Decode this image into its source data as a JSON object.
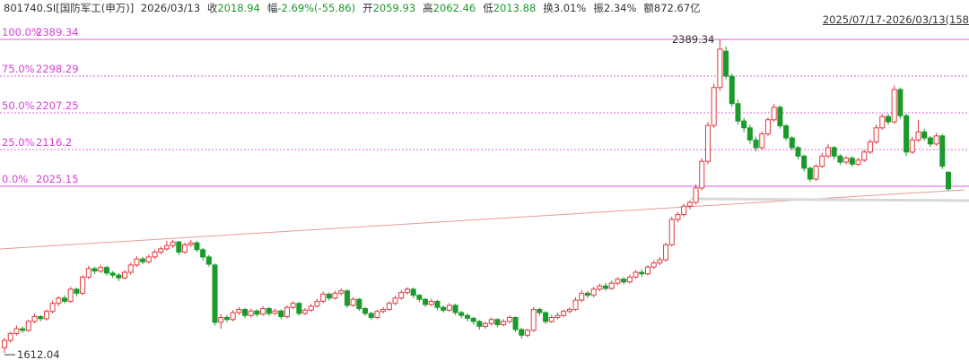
{
  "header": {
    "code": "801740.SI[国防军工(申万)]",
    "date": "2026/03/13",
    "items": [
      {
        "label": "收",
        "value": "2018.94",
        "color": "#1a9a2a"
      },
      {
        "label": "幅",
        "value": "-2.69%(-55.86)",
        "color": "#1a9a2a"
      },
      {
        "label": "开",
        "value": "2059.93",
        "color": "#1a9a2a"
      },
      {
        "label": "高",
        "value": "2062.46",
        "color": "#1a9a2a"
      },
      {
        "label": "低",
        "value": "2013.88",
        "color": "#1a9a2a"
      },
      {
        "label": "换",
        "value": "3.01%",
        "color": "#333333"
      },
      {
        "label": "振",
        "value": "2.34%",
        "color": "#333333"
      },
      {
        "label": "额",
        "value": "872.67亿",
        "color": "#333333"
      }
    ],
    "range": "2025/07/17-2026/03/13(158"
  },
  "chart_data": {
    "type": "candlestick",
    "ylim": [
      1594.5,
      2487
    ],
    "up_color": "#e0393e",
    "down_color": "#1a9a2a",
    "level_color": "#d63fd6",
    "levels": [
      {
        "label": "100.0%",
        "value": 2389.34
      },
      {
        "label": "75.0%",
        "value": 2298.29
      },
      {
        "label": "50.0%",
        "value": 2207.25
      },
      {
        "label": "25.0%",
        "value": 2116.2
      },
      {
        "label": "0.0%",
        "value": 2025.15
      }
    ],
    "max_label": 2389.34,
    "min_label": 1612.04,
    "open": [
      1625,
      1643,
      1660,
      1672,
      1668,
      1690,
      1702,
      1697,
      1715,
      1735,
      1748,
      1740,
      1770,
      1760,
      1800,
      1821,
      1815,
      1824,
      1810,
      1805,
      1798,
      1812,
      1830,
      1845,
      1838,
      1850,
      1862,
      1870,
      1878,
      1887,
      1862,
      1880,
      1885,
      1868,
      1850,
      1830,
      1688,
      1700,
      1695,
      1712,
      1720,
      1705,
      1716,
      1708,
      1722,
      1710,
      1716,
      1702,
      1725,
      1735,
      1710,
      1718,
      1728,
      1740,
      1758,
      1748,
      1760,
      1766,
      1730,
      1745,
      1722,
      1710,
      1700,
      1715,
      1720,
      1735,
      1748,
      1762,
      1770,
      1755,
      1745,
      1732,
      1740,
      1725,
      1718,
      1730,
      1712,
      1705,
      1698,
      1690,
      1678,
      1685,
      1695,
      1682,
      1690,
      1700,
      1670,
      1656,
      1668,
      1720,
      1712,
      1690,
      1700,
      1705,
      1715,
      1720,
      1743,
      1760,
      1755,
      1770,
      1778,
      1772,
      1785,
      1795,
      1788,
      1800,
      1812,
      1808,
      1825,
      1835,
      1843,
      1880,
      1943,
      1955,
      1976,
      1985,
      2021,
      2087,
      2176,
      2270,
      2360,
      2298,
      2230,
      2187,
      2170,
      2140,
      2121,
      2155,
      2190,
      2221,
      2175,
      2145,
      2121,
      2100,
      2070,
      2043,
      2075,
      2100,
      2121,
      2100,
      2085,
      2095,
      2080,
      2090,
      2110,
      2135,
      2170,
      2198,
      2185,
      2265,
      2200,
      2110,
      2140,
      2160,
      2145,
      2130,
      2150,
      2059.93
    ],
    "high": [
      1650,
      1665,
      1680,
      1678,
      1695,
      1710,
      1706,
      1720,
      1742,
      1752,
      1755,
      1776,
      1774,
      1806,
      1828,
      1826,
      1830,
      1828,
      1815,
      1810,
      1818,
      1836,
      1852,
      1850,
      1856,
      1868,
      1876,
      1890,
      1892,
      1890,
      1886,
      1892,
      1890,
      1872,
      1855,
      1834,
      1708,
      1706,
      1718,
      1726,
      1724,
      1722,
      1720,
      1728,
      1726,
      1722,
      1720,
      1730,
      1740,
      1738,
      1724,
      1734,
      1746,
      1764,
      1762,
      1766,
      1772,
      1770,
      1750,
      1748,
      1726,
      1714,
      1720,
      1726,
      1740,
      1754,
      1768,
      1775,
      1774,
      1758,
      1748,
      1746,
      1744,
      1730,
      1736,
      1734,
      1716,
      1710,
      1702,
      1694,
      1690,
      1700,
      1698,
      1696,
      1705,
      1703,
      1674,
      1672,
      1726,
      1724,
      1715,
      1706,
      1712,
      1720,
      1726,
      1750,
      1768,
      1766,
      1776,
      1784,
      1786,
      1792,
      1800,
      1800,
      1806,
      1818,
      1820,
      1830,
      1842,
      1850,
      1886,
      1950,
      1962,
      1982,
      1990,
      2030,
      2095,
      2185,
      2280,
      2389.34,
      2372,
      2305,
      2240,
      2195,
      2178,
      2148,
      2162,
      2196,
      2230,
      2226,
      2180,
      2150,
      2126,
      2104,
      2074,
      2080,
      2108,
      2130,
      2125,
      2105,
      2100,
      2100,
      2096,
      2116,
      2142,
      2178,
      2205,
      2205,
      2275,
      2270,
      2205,
      2148,
      2190,
      2168,
      2150,
      2158,
      2155,
      2062.46
    ],
    "low": [
      1612.04,
      1638,
      1655,
      1662,
      1664,
      1686,
      1690,
      1692,
      1710,
      1728,
      1735,
      1736,
      1752,
      1755,
      1795,
      1808,
      1810,
      1804,
      1798,
      1790,
      1794,
      1806,
      1825,
      1832,
      1834,
      1845,
      1856,
      1865,
      1872,
      1855,
      1858,
      1875,
      1862,
      1842,
      1826,
      1680,
      1672,
      1688,
      1690,
      1706,
      1698,
      1700,
      1702,
      1704,
      1704,
      1706,
      1696,
      1698,
      1720,
      1704,
      1706,
      1714,
      1724,
      1735,
      1742,
      1744,
      1755,
      1724,
      1726,
      1716,
      1704,
      1694,
      1696,
      1710,
      1716,
      1730,
      1744,
      1756,
      1748,
      1738,
      1726,
      1728,
      1718,
      1712,
      1714,
      1706,
      1698,
      1690,
      1682,
      1670,
      1672,
      1680,
      1676,
      1678,
      1685,
      1664,
      1648,
      1650,
      1664,
      1705,
      1684,
      1686,
      1695,
      1700,
      1710,
      1716,
      1738,
      1748,
      1750,
      1765,
      1766,
      1768,
      1780,
      1782,
      1784,
      1796,
      1800,
      1804,
      1820,
      1830,
      1838,
      1876,
      1936,
      1950,
      1968,
      1980,
      2015,
      2080,
      2170,
      2262,
      2290,
      2222,
      2178,
      2160,
      2130,
      2112,
      2115,
      2150,
      2185,
      2168,
      2138,
      2114,
      2092,
      2062,
      2036,
      2038,
      2070,
      2095,
      2092,
      2078,
      2080,
      2074,
      2076,
      2085,
      2105,
      2130,
      2165,
      2178,
      2180,
      2192,
      2100,
      2105,
      2135,
      2138,
      2122,
      2125,
      2068,
      2013.88
    ],
    "close": [
      1643,
      1660,
      1672,
      1668,
      1690,
      1702,
      1697,
      1715,
      1735,
      1748,
      1740,
      1770,
      1760,
      1800,
      1821,
      1815,
      1824,
      1810,
      1805,
      1798,
      1812,
      1830,
      1845,
      1838,
      1850,
      1862,
      1870,
      1878,
      1887,
      1862,
      1880,
      1885,
      1868,
      1850,
      1832,
      1688,
      1700,
      1695,
      1712,
      1720,
      1705,
      1716,
      1708,
      1722,
      1710,
      1716,
      1702,
      1725,
      1735,
      1710,
      1718,
      1728,
      1740,
      1758,
      1748,
      1760,
      1766,
      1730,
      1745,
      1722,
      1710,
      1700,
      1715,
      1720,
      1735,
      1748,
      1762,
      1770,
      1755,
      1745,
      1732,
      1740,
      1725,
      1718,
      1730,
      1712,
      1705,
      1698,
      1690,
      1678,
      1685,
      1695,
      1682,
      1690,
      1700,
      1670,
      1656,
      1668,
      1720,
      1712,
      1690,
      1700,
      1705,
      1715,
      1720,
      1743,
      1760,
      1755,
      1770,
      1778,
      1772,
      1785,
      1795,
      1788,
      1800,
      1812,
      1808,
      1825,
      1835,
      1843,
      1880,
      1943,
      1955,
      1976,
      1985,
      2021,
      2087,
      2176,
      2270,
      2365,
      2298,
      2230,
      2187,
      2170,
      2140,
      2121,
      2155,
      2190,
      2221,
      2175,
      2145,
      2121,
      2100,
      2070,
      2043,
      2075,
      2100,
      2121,
      2100,
      2085,
      2095,
      2080,
      2090,
      2110,
      2135,
      2170,
      2198,
      2185,
      2265,
      2200,
      2110,
      2140,
      2160,
      2145,
      2130,
      2150,
      2075,
      2018.94
    ]
  }
}
